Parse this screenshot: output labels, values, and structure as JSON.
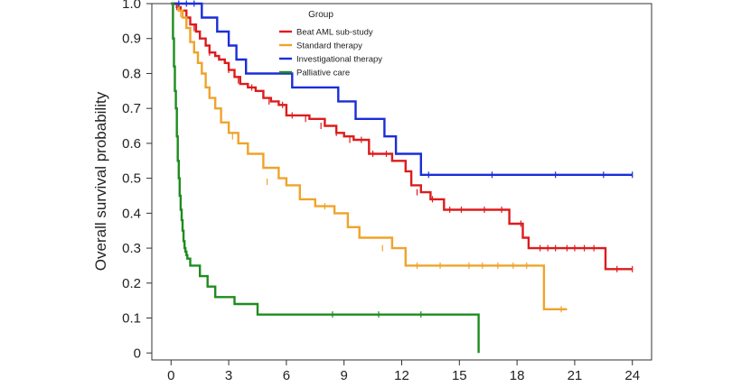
{
  "chart_data": {
    "type": "line",
    "step": true,
    "title": "",
    "xlabel": "",
    "ylabel": "Overall survival probability",
    "xlim": [
      -1,
      25
    ],
    "ylim": [
      -0.02,
      1.0
    ],
    "x_ticks": [
      0,
      3,
      6,
      9,
      12,
      15,
      18,
      21,
      24
    ],
    "x_tick_labels": [
      "0",
      "3",
      "6",
      "9",
      "12",
      "15",
      "18",
      "21",
      "24"
    ],
    "y_ticks": [
      0,
      0.1,
      0.2,
      0.3,
      0.4,
      0.5,
      0.6,
      0.7,
      0.8,
      0.9,
      1.0
    ],
    "y_tick_labels": [
      "0",
      "0.1",
      "0.2",
      "0.3",
      "0.4",
      "0.5",
      "0.6",
      "0.7",
      "0.8",
      "0.9",
      "1.0"
    ],
    "grid": false,
    "legend": {
      "title": "Group",
      "placement": "top-center"
    },
    "series": [
      {
        "name": "Beat AML sub-study",
        "color": "#dd1c1c",
        "x": [
          0,
          0.3,
          0.5,
          0.8,
          1.0,
          1.3,
          1.5,
          1.8,
          2.0,
          2.3,
          2.5,
          2.8,
          3.0,
          3.3,
          3.6,
          4.0,
          4.4,
          4.8,
          5.2,
          5.6,
          6.0,
          6.5,
          7.2,
          8.0,
          8.6,
          9.0,
          9.5,
          10.3,
          11.0,
          11.5,
          12.2,
          12.5,
          13.0,
          13.5,
          14.2,
          15.0,
          16.0,
          17.6,
          18.3,
          18.6,
          22.6,
          24.0
        ],
        "y": [
          1.0,
          0.99,
          0.98,
          0.96,
          0.94,
          0.92,
          0.9,
          0.88,
          0.86,
          0.85,
          0.84,
          0.83,
          0.81,
          0.79,
          0.77,
          0.76,
          0.75,
          0.73,
          0.72,
          0.71,
          0.68,
          0.68,
          0.67,
          0.65,
          0.63,
          0.62,
          0.61,
          0.57,
          0.57,
          0.55,
          0.52,
          0.48,
          0.46,
          0.44,
          0.41,
          0.41,
          0.41,
          0.37,
          0.33,
          0.3,
          0.24,
          0.24
        ],
        "censor_x": [
          0.3,
          1.2,
          2.0,
          3.0,
          3.5,
          4.2,
          5.1,
          5.8,
          6.3,
          7.0,
          7.8,
          8.6,
          9.3,
          9.9,
          10.5,
          11.2,
          12.8,
          13.6,
          14.5,
          15.1,
          16.3,
          17.2,
          18.2,
          19.2,
          19.6,
          20.0,
          20.6,
          21.0,
          21.5,
          22.0,
          23.2,
          24.0
        ],
        "censor_y": [
          0.99,
          0.93,
          0.86,
          0.81,
          0.78,
          0.76,
          0.72,
          0.71,
          0.68,
          0.67,
          0.65,
          0.63,
          0.61,
          0.61,
          0.57,
          0.57,
          0.46,
          0.44,
          0.41,
          0.41,
          0.41,
          0.41,
          0.37,
          0.3,
          0.3,
          0.3,
          0.3,
          0.3,
          0.3,
          0.3,
          0.24,
          0.24
        ]
      },
      {
        "name": "Standard therapy",
        "color": "#f0a32a",
        "x": [
          0,
          0.4,
          0.6,
          0.8,
          1.0,
          1.2,
          1.4,
          1.6,
          1.8,
          2.0,
          2.3,
          2.6,
          3.0,
          3.5,
          4.0,
          4.8,
          5.6,
          6.0,
          6.7,
          7.5,
          8.5,
          9.2,
          9.8,
          11.5,
          12.2,
          14.8,
          19.4,
          20.6
        ],
        "y": [
          1.0,
          0.98,
          0.96,
          0.93,
          0.89,
          0.86,
          0.83,
          0.8,
          0.76,
          0.73,
          0.7,
          0.66,
          0.63,
          0.6,
          0.57,
          0.53,
          0.5,
          0.48,
          0.44,
          0.42,
          0.4,
          0.36,
          0.33,
          0.3,
          0.25,
          0.25,
          0.125,
          0.125
        ],
        "censor_x": [
          0.5,
          3.2,
          5.0,
          8.0,
          11.0,
          12.8,
          14.0,
          15.5,
          16.2,
          17.0,
          17.8,
          18.5,
          20.3
        ],
        "censor_y": [
          0.97,
          0.62,
          0.49,
          0.42,
          0.3,
          0.25,
          0.25,
          0.25,
          0.25,
          0.25,
          0.25,
          0.25,
          0.125
        ]
      },
      {
        "name": "Investigational therapy",
        "color": "#1a2ed8",
        "x": [
          0,
          1.6,
          2.4,
          3.0,
          3.4,
          3.9,
          6.3,
          8.7,
          9.6,
          11.1,
          11.7,
          13.0,
          24.0
        ],
        "y": [
          1.0,
          0.96,
          0.92,
          0.88,
          0.84,
          0.8,
          0.76,
          0.72,
          0.67,
          0.62,
          0.57,
          0.51,
          0.51
        ],
        "censor_x": [
          0.4,
          0.8,
          1.2,
          13.4,
          16.7,
          20.0,
          22.5,
          24.0
        ],
        "censor_y": [
          1.0,
          1.0,
          1.0,
          0.51,
          0.51,
          0.51,
          0.51,
          0.51
        ]
      },
      {
        "name": "Palliative care",
        "color": "#1e8c1e",
        "x": [
          0,
          0.1,
          0.15,
          0.2,
          0.25,
          0.3,
          0.35,
          0.4,
          0.45,
          0.5,
          0.55,
          0.6,
          0.65,
          0.7,
          0.75,
          0.8,
          0.85,
          0.9,
          1.0,
          1.5,
          1.9,
          2.3,
          3.3,
          4.5,
          16.0
        ],
        "y": [
          1.0,
          0.9,
          0.82,
          0.75,
          0.7,
          0.62,
          0.55,
          0.5,
          0.45,
          0.41,
          0.38,
          0.35,
          0.32,
          0.3,
          0.29,
          0.28,
          0.27,
          0.27,
          0.25,
          0.22,
          0.19,
          0.16,
          0.14,
          0.11,
          0.0
        ],
        "censor_x": [
          8.4,
          10.8,
          13.0
        ],
        "censor_y": [
          0.11,
          0.11,
          0.11
        ]
      }
    ]
  }
}
